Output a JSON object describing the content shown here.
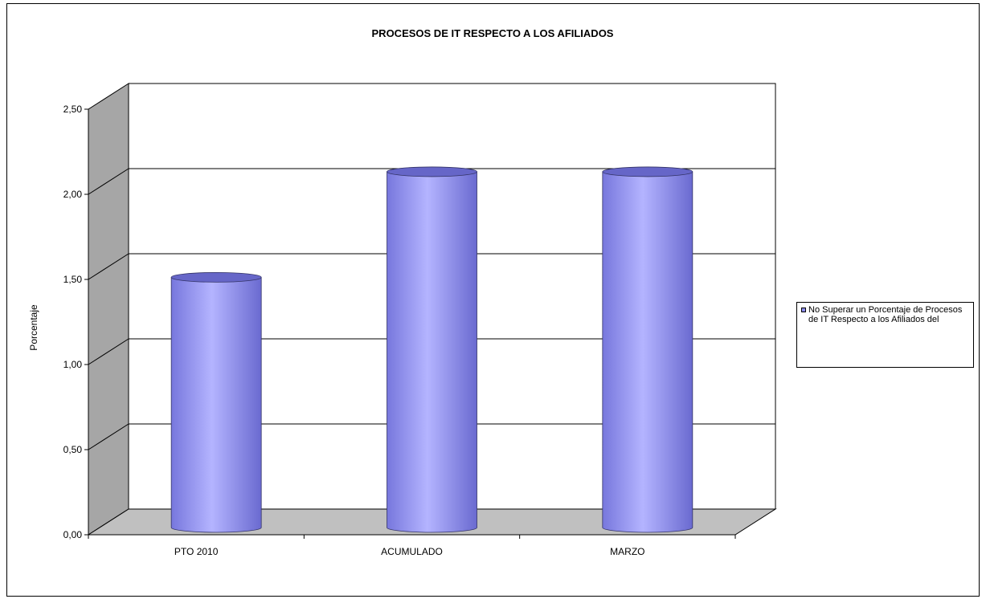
{
  "chart_data": {
    "type": "bar",
    "title": "PROCESOS DE IT RESPECTO A LOS AFILIADOS",
    "ylabel": "Porcentaje",
    "xlabel": "",
    "categories": [
      "PTO 2010",
      "ACUMULADO",
      "MARZO"
    ],
    "series": [
      {
        "name": "No Superar un Porcentaje de Procesos de IT Respecto a los Afiliados del",
        "values": [
          1.47,
          2.09,
          2.09
        ]
      }
    ],
    "ylim": [
      0,
      2.5
    ],
    "yticks": [
      "0,00",
      "0,50",
      "1,00",
      "1,50",
      "2,00",
      "2,50"
    ],
    "grid": true,
    "legend": "right",
    "style": "3d-cylinder",
    "colors": {
      "bar": "#8f8ff0",
      "bar_light": "#b4b4ff",
      "bar_dark": "#6666c8",
      "wall": "#a6a6a6",
      "floor": "#c0c0c0"
    }
  }
}
